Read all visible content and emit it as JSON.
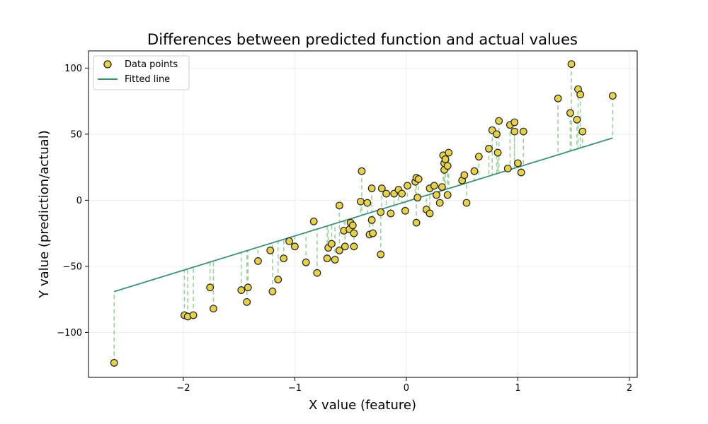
{
  "chart_data": {
    "type": "scatter",
    "title": "Differences between predicted function and actual values",
    "xlabel": "X value (feature)",
    "ylabel": "Y value (prediction/actual)",
    "xlim": [
      -2.85,
      2.07
    ],
    "ylim": [
      -134,
      113
    ],
    "x_ticks": [
      -2,
      -1,
      0,
      1,
      2
    ],
    "x_tick_labels": [
      "−2",
      "−1",
      "0",
      "1",
      "2"
    ],
    "y_ticks": [
      -100,
      -50,
      0,
      50,
      100
    ],
    "y_tick_labels": [
      "−100",
      "−50",
      "0",
      "50",
      "100"
    ],
    "grid": true,
    "legend_position": "top-left",
    "fitted_line": {
      "slope": 26.0,
      "intercept": -1.0
    },
    "series": [
      {
        "name": "Data points",
        "kind": "scatter",
        "face_color": "#e6d24a",
        "edge_color": "#222222",
        "points": [
          {
            "x": -2.62,
            "y": -123
          },
          {
            "x": -1.99,
            "y": -87
          },
          {
            "x": -1.96,
            "y": -88
          },
          {
            "x": -1.91,
            "y": -87
          },
          {
            "x": -1.76,
            "y": -66
          },
          {
            "x": -1.73,
            "y": -82
          },
          {
            "x": -1.48,
            "y": -68
          },
          {
            "x": -1.43,
            "y": -77
          },
          {
            "x": -1.42,
            "y": -66
          },
          {
            "x": -1.33,
            "y": -46
          },
          {
            "x": -1.22,
            "y": -38
          },
          {
            "x": -1.2,
            "y": -69
          },
          {
            "x": -1.15,
            "y": -60
          },
          {
            "x": -1.1,
            "y": -44
          },
          {
            "x": -1.05,
            "y": -31
          },
          {
            "x": -1.0,
            "y": -35
          },
          {
            "x": -0.9,
            "y": -47
          },
          {
            "x": -0.83,
            "y": -16
          },
          {
            "x": -0.8,
            "y": -55
          },
          {
            "x": -0.71,
            "y": -44
          },
          {
            "x": -0.7,
            "y": -36
          },
          {
            "x": -0.67,
            "y": -33
          },
          {
            "x": -0.64,
            "y": -45
          },
          {
            "x": -0.6,
            "y": -38
          },
          {
            "x": -0.6,
            "y": -4
          },
          {
            "x": -0.56,
            "y": -23
          },
          {
            "x": -0.55,
            "y": -35
          },
          {
            "x": -0.51,
            "y": -22
          },
          {
            "x": -0.5,
            "y": -17
          },
          {
            "x": -0.48,
            "y": -19
          },
          {
            "x": -0.47,
            "y": -35
          },
          {
            "x": -0.47,
            "y": -25
          },
          {
            "x": -0.41,
            "y": -1
          },
          {
            "x": -0.4,
            "y": 22
          },
          {
            "x": -0.35,
            "y": -2
          },
          {
            "x": -0.33,
            "y": -26
          },
          {
            "x": -0.31,
            "y": 9
          },
          {
            "x": -0.31,
            "y": -15
          },
          {
            "x": -0.3,
            "y": -25
          },
          {
            "x": -0.23,
            "y": -41
          },
          {
            "x": -0.23,
            "y": -9
          },
          {
            "x": -0.22,
            "y": 9
          },
          {
            "x": -0.18,
            "y": 5
          },
          {
            "x": -0.14,
            "y": -10
          },
          {
            "x": -0.11,
            "y": 5
          },
          {
            "x": -0.07,
            "y": 8
          },
          {
            "x": -0.04,
            "y": 5
          },
          {
            "x": -0.01,
            "y": -8
          },
          {
            "x": 0.01,
            "y": 11
          },
          {
            "x": 0.08,
            "y": 14
          },
          {
            "x": 0.09,
            "y": 17
          },
          {
            "x": 0.09,
            "y": -17
          },
          {
            "x": 0.11,
            "y": 16
          },
          {
            "x": 0.1,
            "y": 2
          },
          {
            "x": 0.18,
            "y": -7
          },
          {
            "x": 0.21,
            "y": -10
          },
          {
            "x": 0.21,
            "y": 9
          },
          {
            "x": 0.25,
            "y": 11
          },
          {
            "x": 0.27,
            "y": 4
          },
          {
            "x": 0.3,
            "y": -2
          },
          {
            "x": 0.32,
            "y": 10
          },
          {
            "x": 0.33,
            "y": 34
          },
          {
            "x": 0.34,
            "y": 28
          },
          {
            "x": 0.34,
            "y": 23
          },
          {
            "x": 0.35,
            "y": 31
          },
          {
            "x": 0.37,
            "y": 26
          },
          {
            "x": 0.37,
            "y": 4
          },
          {
            "x": 0.38,
            "y": 36
          },
          {
            "x": 0.5,
            "y": 15
          },
          {
            "x": 0.52,
            "y": 19
          },
          {
            "x": 0.54,
            "y": -2
          },
          {
            "x": 0.61,
            "y": 22
          },
          {
            "x": 0.65,
            "y": 33
          },
          {
            "x": 0.74,
            "y": 39
          },
          {
            "x": 0.77,
            "y": 53
          },
          {
            "x": 0.81,
            "y": 50
          },
          {
            "x": 0.82,
            "y": 36
          },
          {
            "x": 0.83,
            "y": 60
          },
          {
            "x": 0.91,
            "y": 24
          },
          {
            "x": 0.93,
            "y": 57
          },
          {
            "x": 0.97,
            "y": 59
          },
          {
            "x": 0.97,
            "y": 52
          },
          {
            "x": 1.0,
            "y": 28
          },
          {
            "x": 1.03,
            "y": 21
          },
          {
            "x": 1.05,
            "y": 52
          },
          {
            "x": 1.36,
            "y": 77
          },
          {
            "x": 1.47,
            "y": 66
          },
          {
            "x": 1.48,
            "y": 103
          },
          {
            "x": 1.53,
            "y": 61
          },
          {
            "x": 1.54,
            "y": 84
          },
          {
            "x": 1.56,
            "y": 80
          },
          {
            "x": 1.58,
            "y": 52
          },
          {
            "x": 1.85,
            "y": 79
          }
        ]
      },
      {
        "name": "Fitted line",
        "kind": "line",
        "color": "#3e8f7a",
        "x": [
          -2.62,
          1.85
        ]
      }
    ],
    "residual_color": "#9fd09f"
  }
}
